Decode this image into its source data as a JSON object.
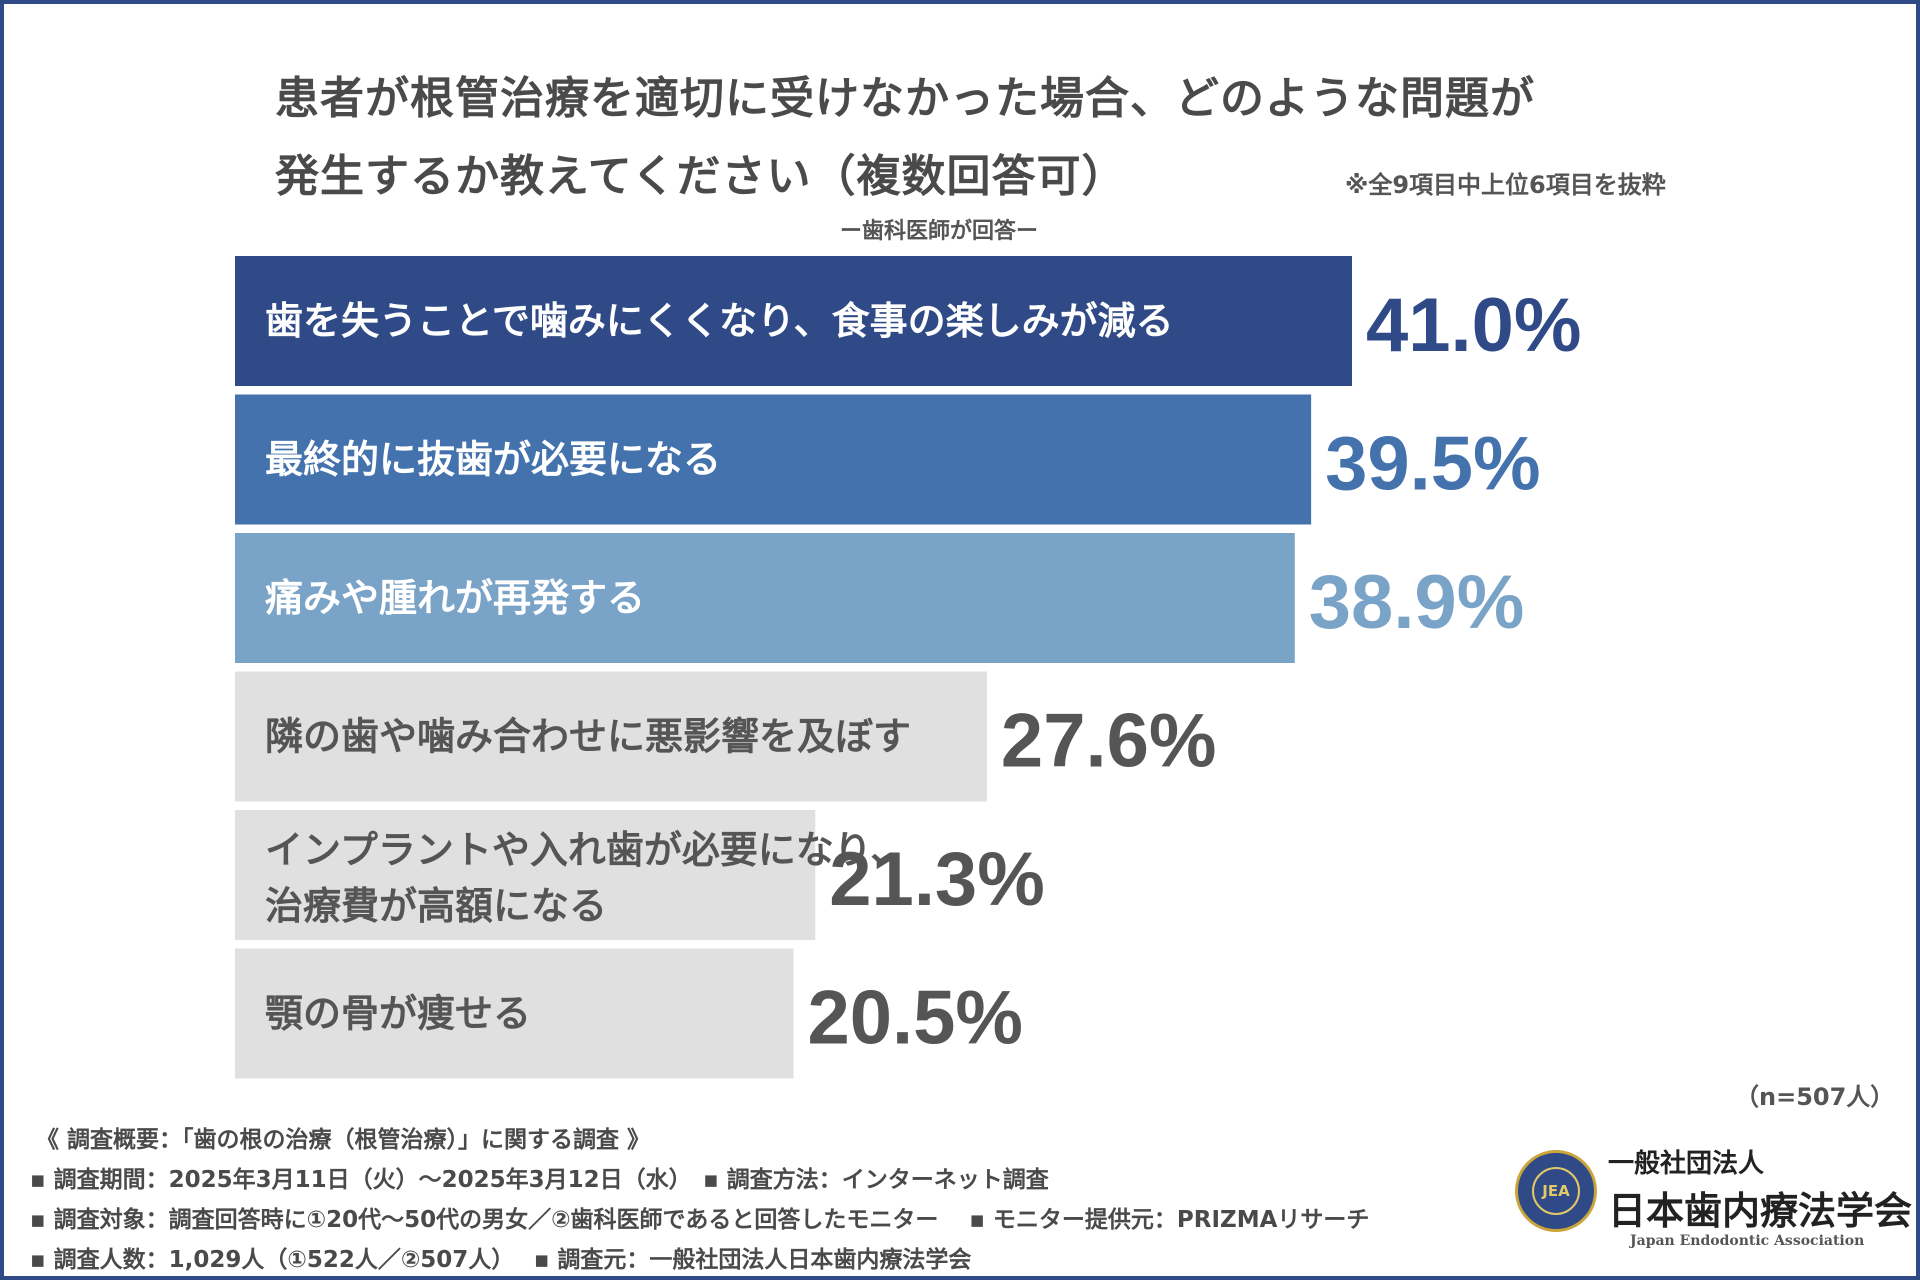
{
  "header": {
    "title_line1": "患者が根管治療を適切に受けなかった場合、どのような問題が",
    "title_line2": "発生するか教えてください（複数回答可）",
    "note": "※全9項目中上位6項目を抜粋",
    "respondent": "ー歯科医師が回答ー"
  },
  "chart_data": {
    "type": "bar",
    "orientation": "horizontal",
    "title": "患者が根管治療を適切に受けなかった場合、どのような問題が発生するか教えてください（複数回答可）",
    "unit": "%",
    "categories": [
      "歯を失うことで噛みにくくなり、食事の楽しみが減る",
      "最終的に抜歯が必要になる",
      "痛みや腫れが再発する",
      "隣の歯や噛み合わせに悪影響を及ぼす",
      "インプラントや入れ歯が必要になり、治療費が高額になる",
      "顎の骨が痩せる"
    ],
    "category_lines": [
      [
        "歯を失うことで噛みにくくなり、食事の楽しみが減る"
      ],
      [
        "最終的に抜歯が必要になる"
      ],
      [
        "痛みや腫れが再発する"
      ],
      [
        "隣の歯や噛み合わせに悪影響を及ぼす"
      ],
      [
        "インプラントや入れ歯が必要になり、",
        "治療費が高額になる"
      ],
      [
        "顎の骨が痩せる"
      ]
    ],
    "values": [
      41.0,
      39.5,
      38.9,
      27.6,
      21.3,
      20.5
    ],
    "value_labels": [
      "41.0%",
      "39.5%",
      "38.9%",
      "27.6%",
      "21.3%",
      "20.5%"
    ],
    "bar_colors": [
      "#2f4a86",
      "#4472ad",
      "#7aa3c8",
      "#e0e0e0",
      "#e0e0e0",
      "#e0e0e0"
    ],
    "label_colors": [
      "#ffffff",
      "#ffffff",
      "#ffffff",
      "#555555",
      "#555555",
      "#555555"
    ],
    "value_colors": [
      "#2f4a86",
      "#4472ad",
      "#7aa3c8",
      "#555555",
      "#555555",
      "#555555"
    ],
    "xlim": [
      0,
      41.0
    ]
  },
  "sample_size": "（n=507人）",
  "footer": {
    "heading": "《 調査概要：「歯の根の治療（根管治療）」に関する調査 》",
    "line1": "▪ 調査期間：2025年3月11日（火）〜2025年3月12日（水）　▪ 調査方法：インターネット調査",
    "line2": "▪ 調査対象：調査回答時に①20代〜50代の男女／②歯科医師であると回答したモニター　 ▪ モニター提供元：PRIZMAリサーチ",
    "line3": "▪ 調査人数：1,029人（①522人／②507人）　 ▪ 調査元：一般社団法人日本歯内療法学会"
  },
  "organization": {
    "seal_text": "JEA",
    "type": "一般社団法人",
    "name": "日本歯内療法学会",
    "name_en": "Japan Endodontic Association"
  }
}
